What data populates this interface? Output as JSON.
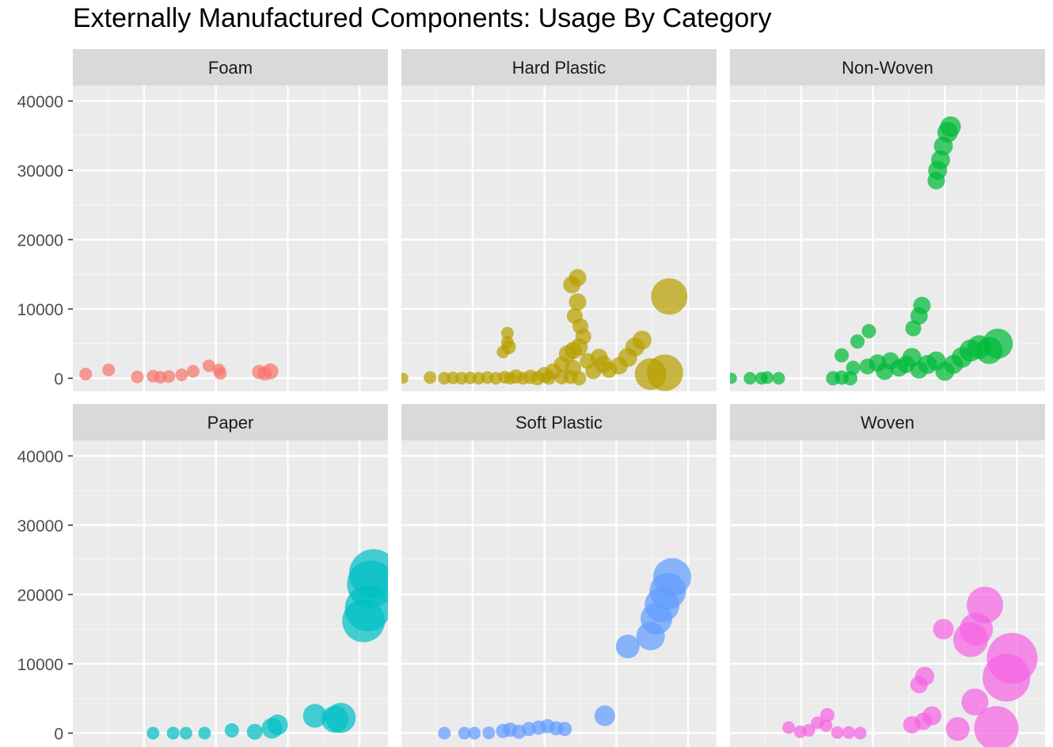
{
  "chart_data": {
    "type": "scatter",
    "title": "Externally Manufactured Components: Usage By Category",
    "xlabel": "",
    "ylabel": "",
    "ylim": [
      -1800,
      44000
    ],
    "y_ticks": [
      0,
      10000,
      20000,
      30000,
      40000
    ],
    "y_tick_labels": [
      "0",
      "10000",
      "20000",
      "30000",
      "40000"
    ],
    "xlim": [
      0,
      22
    ],
    "grid": true,
    "legend": "none",
    "facets": [
      {
        "name": "Foam",
        "color": "#F8766D",
        "points": [
          {
            "x": 0.9,
            "y": 600,
            "s": 8
          },
          {
            "x": 2.5,
            "y": 1200,
            "s": 8
          },
          {
            "x": 4.5,
            "y": 200,
            "s": 8
          },
          {
            "x": 5.6,
            "y": 300,
            "s": 8
          },
          {
            "x": 6.1,
            "y": 150,
            "s": 8
          },
          {
            "x": 6.7,
            "y": 250,
            "s": 8
          },
          {
            "x": 7.6,
            "y": 500,
            "s": 8
          },
          {
            "x": 8.4,
            "y": 1000,
            "s": 8
          },
          {
            "x": 9.5,
            "y": 1800,
            "s": 8
          },
          {
            "x": 10.2,
            "y": 1200,
            "s": 8
          },
          {
            "x": 10.3,
            "y": 700,
            "s": 8
          },
          {
            "x": 13.0,
            "y": 900,
            "s": 9
          },
          {
            "x": 13.8,
            "y": 1000,
            "s": 10
          },
          {
            "x": 13.4,
            "y": 700,
            "s": 9
          }
        ]
      },
      {
        "name": "Hard Plastic",
        "color": "#B79F00",
        "points": [
          {
            "x": 0.1,
            "y": 0,
            "s": 7
          },
          {
            "x": 2.0,
            "y": 100,
            "s": 8
          },
          {
            "x": 3.0,
            "y": 0,
            "s": 8
          },
          {
            "x": 3.6,
            "y": 50,
            "s": 8
          },
          {
            "x": 4.2,
            "y": 0,
            "s": 8
          },
          {
            "x": 4.8,
            "y": 50,
            "s": 8
          },
          {
            "x": 5.4,
            "y": 0,
            "s": 8
          },
          {
            "x": 6.0,
            "y": 100,
            "s": 8
          },
          {
            "x": 6.6,
            "y": 0,
            "s": 8
          },
          {
            "x": 7.2,
            "y": 150,
            "s": 8
          },
          {
            "x": 7.6,
            "y": 0,
            "s": 8
          },
          {
            "x": 8.0,
            "y": 250,
            "s": 9
          },
          {
            "x": 8.5,
            "y": 0,
            "s": 8
          },
          {
            "x": 9.0,
            "y": 200,
            "s": 9
          },
          {
            "x": 9.5,
            "y": 0,
            "s": 9
          },
          {
            "x": 10.3,
            "y": 100,
            "s": 9
          },
          {
            "x": 11.2,
            "y": 150,
            "s": 9
          },
          {
            "x": 11.8,
            "y": 200,
            "s": 9
          },
          {
            "x": 12.4,
            "y": 0,
            "s": 9
          },
          {
            "x": 7.1,
            "y": 3800,
            "s": 8
          },
          {
            "x": 7.5,
            "y": 4500,
            "s": 9
          },
          {
            "x": 7.4,
            "y": 5200,
            "s": 8
          },
          {
            "x": 7.4,
            "y": 6500,
            "s": 8
          },
          {
            "x": 10.0,
            "y": 500,
            "s": 10
          },
          {
            "x": 10.6,
            "y": 1000,
            "s": 10
          },
          {
            "x": 11.2,
            "y": 2000,
            "s": 10
          },
          {
            "x": 11.6,
            "y": 3500,
            "s": 11
          },
          {
            "x": 12.0,
            "y": 1500,
            "s": 10
          },
          {
            "x": 12.4,
            "y": 4500,
            "s": 11
          },
          {
            "x": 12.7,
            "y": 6000,
            "s": 10
          },
          {
            "x": 13.0,
            "y": 2500,
            "s": 10
          },
          {
            "x": 13.4,
            "y": 1000,
            "s": 10
          },
          {
            "x": 13.8,
            "y": 3000,
            "s": 11
          },
          {
            "x": 14.1,
            "y": 2000,
            "s": 11
          },
          {
            "x": 14.5,
            "y": 1200,
            "s": 10
          },
          {
            "x": 15.2,
            "y": 1800,
            "s": 11
          },
          {
            "x": 15.8,
            "y": 3000,
            "s": 12
          },
          {
            "x": 16.3,
            "y": 4500,
            "s": 12
          },
          {
            "x": 16.8,
            "y": 5500,
            "s": 12
          },
          {
            "x": 12.1,
            "y": 9000,
            "s": 10
          },
          {
            "x": 12.3,
            "y": 11000,
            "s": 11
          },
          {
            "x": 11.9,
            "y": 13500,
            "s": 11
          },
          {
            "x": 12.3,
            "y": 14500,
            "s": 11
          },
          {
            "x": 12.5,
            "y": 7500,
            "s": 10
          },
          {
            "x": 17.4,
            "y": 600,
            "s": 20
          },
          {
            "x": 18.4,
            "y": 800,
            "s": 23
          },
          {
            "x": 18.7,
            "y": 11800,
            "s": 23
          },
          {
            "x": 12.0,
            "y": 4000,
            "s": 11
          }
        ]
      },
      {
        "name": "Non-Woven",
        "color": "#00BA38",
        "points": [
          {
            "x": 0.1,
            "y": 0,
            "s": 7
          },
          {
            "x": 1.4,
            "y": 0,
            "s": 8
          },
          {
            "x": 2.2,
            "y": 0,
            "s": 8
          },
          {
            "x": 2.6,
            "y": 100,
            "s": 8
          },
          {
            "x": 3.4,
            "y": 0,
            "s": 8
          },
          {
            "x": 7.2,
            "y": 0,
            "s": 9
          },
          {
            "x": 7.8,
            "y": 100,
            "s": 9
          },
          {
            "x": 8.4,
            "y": 0,
            "s": 9
          },
          {
            "x": 8.6,
            "y": 1500,
            "s": 9
          },
          {
            "x": 7.8,
            "y": 3300,
            "s": 9
          },
          {
            "x": 8.9,
            "y": 5300,
            "s": 9
          },
          {
            "x": 9.7,
            "y": 6800,
            "s": 9
          },
          {
            "x": 9.6,
            "y": 1700,
            "s": 10
          },
          {
            "x": 10.3,
            "y": 2200,
            "s": 11
          },
          {
            "x": 10.8,
            "y": 1000,
            "s": 11
          },
          {
            "x": 11.2,
            "y": 2500,
            "s": 11
          },
          {
            "x": 11.8,
            "y": 1500,
            "s": 11
          },
          {
            "x": 12.3,
            "y": 2000,
            "s": 11
          },
          {
            "x": 12.7,
            "y": 3000,
            "s": 12
          },
          {
            "x": 13.2,
            "y": 1200,
            "s": 11
          },
          {
            "x": 13.8,
            "y": 2000,
            "s": 12
          },
          {
            "x": 14.4,
            "y": 2500,
            "s": 12
          },
          {
            "x": 15.0,
            "y": 1000,
            "s": 12
          },
          {
            "x": 15.6,
            "y": 2000,
            "s": 12
          },
          {
            "x": 16.2,
            "y": 3000,
            "s": 13
          },
          {
            "x": 16.8,
            "y": 4000,
            "s": 14
          },
          {
            "x": 17.4,
            "y": 4500,
            "s": 15
          },
          {
            "x": 18.1,
            "y": 4000,
            "s": 17
          },
          {
            "x": 18.7,
            "y": 5000,
            "s": 19
          },
          {
            "x": 12.8,
            "y": 7200,
            "s": 10
          },
          {
            "x": 13.2,
            "y": 9000,
            "s": 11
          },
          {
            "x": 13.4,
            "y": 10500,
            "s": 11
          },
          {
            "x": 14.4,
            "y": 28500,
            "s": 11
          },
          {
            "x": 14.5,
            "y": 30000,
            "s": 12
          },
          {
            "x": 14.7,
            "y": 31500,
            "s": 12
          },
          {
            "x": 14.9,
            "y": 33500,
            "s": 12
          },
          {
            "x": 15.2,
            "y": 35500,
            "s": 13
          },
          {
            "x": 15.4,
            "y": 36300,
            "s": 13
          }
        ]
      },
      {
        "name": "Paper",
        "color": "#00BFC4",
        "points": [
          {
            "x": 5.6,
            "y": 0,
            "s": 8
          },
          {
            "x": 7.0,
            "y": 0,
            "s": 8
          },
          {
            "x": 7.9,
            "y": 0,
            "s": 8
          },
          {
            "x": 9.2,
            "y": 0,
            "s": 8
          },
          {
            "x": 11.1,
            "y": 400,
            "s": 9
          },
          {
            "x": 12.7,
            "y": 200,
            "s": 10
          },
          {
            "x": 13.9,
            "y": 700,
            "s": 13
          },
          {
            "x": 14.3,
            "y": 1200,
            "s": 13
          },
          {
            "x": 16.9,
            "y": 2500,
            "s": 15
          },
          {
            "x": 18.3,
            "y": 2000,
            "s": 17
          },
          {
            "x": 18.7,
            "y": 2200,
            "s": 19
          },
          {
            "x": 20.3,
            "y": 16200,
            "s": 27
          },
          {
            "x": 20.6,
            "y": 18000,
            "s": 29
          },
          {
            "x": 20.8,
            "y": 21500,
            "s": 30
          },
          {
            "x": 21.0,
            "y": 23000,
            "s": 31
          }
        ]
      },
      {
        "name": "Soft Plastic",
        "color": "#619CFF",
        "points": [
          {
            "x": 3.0,
            "y": 0,
            "s": 8
          },
          {
            "x": 4.4,
            "y": 0,
            "s": 8
          },
          {
            "x": 5.1,
            "y": 0,
            "s": 8
          },
          {
            "x": 6.1,
            "y": 50,
            "s": 8
          },
          {
            "x": 7.1,
            "y": 300,
            "s": 9
          },
          {
            "x": 7.6,
            "y": 500,
            "s": 9
          },
          {
            "x": 8.2,
            "y": 200,
            "s": 9
          },
          {
            "x": 8.9,
            "y": 600,
            "s": 9
          },
          {
            "x": 9.6,
            "y": 800,
            "s": 9
          },
          {
            "x": 10.2,
            "y": 1000,
            "s": 9
          },
          {
            "x": 10.8,
            "y": 700,
            "s": 9
          },
          {
            "x": 11.4,
            "y": 600,
            "s": 9
          },
          {
            "x": 14.2,
            "y": 2500,
            "s": 13
          },
          {
            "x": 15.8,
            "y": 12500,
            "s": 15
          },
          {
            "x": 17.4,
            "y": 14000,
            "s": 18
          },
          {
            "x": 17.8,
            "y": 16500,
            "s": 20
          },
          {
            "x": 18.2,
            "y": 18500,
            "s": 22
          },
          {
            "x": 18.6,
            "y": 20500,
            "s": 23
          },
          {
            "x": 18.9,
            "y": 22500,
            "s": 24
          }
        ]
      },
      {
        "name": "Woven",
        "color": "#F564E3",
        "points": [
          {
            "x": 4.1,
            "y": 800,
            "s": 8
          },
          {
            "x": 4.9,
            "y": 200,
            "s": 8
          },
          {
            "x": 5.5,
            "y": 400,
            "s": 8
          },
          {
            "x": 6.1,
            "y": 1500,
            "s": 8
          },
          {
            "x": 6.8,
            "y": 2600,
            "s": 9
          },
          {
            "x": 6.7,
            "y": 1100,
            "s": 8
          },
          {
            "x": 7.5,
            "y": 100,
            "s": 8
          },
          {
            "x": 8.3,
            "y": 100,
            "s": 8
          },
          {
            "x": 9.1,
            "y": 0,
            "s": 8
          },
          {
            "x": 12.7,
            "y": 1200,
            "s": 11
          },
          {
            "x": 13.5,
            "y": 1700,
            "s": 11
          },
          {
            "x": 14.1,
            "y": 2500,
            "s": 12
          },
          {
            "x": 13.2,
            "y": 7000,
            "s": 11
          },
          {
            "x": 13.6,
            "y": 8200,
            "s": 12
          },
          {
            "x": 14.9,
            "y": 15000,
            "s": 13
          },
          {
            "x": 15.9,
            "y": 600,
            "s": 15
          },
          {
            "x": 17.1,
            "y": 4500,
            "s": 17
          },
          {
            "x": 16.8,
            "y": 13500,
            "s": 22
          },
          {
            "x": 17.2,
            "y": 15000,
            "s": 21
          },
          {
            "x": 17.8,
            "y": 18500,
            "s": 23
          },
          {
            "x": 18.6,
            "y": 700,
            "s": 28
          },
          {
            "x": 19.3,
            "y": 8000,
            "s": 30
          },
          {
            "x": 19.7,
            "y": 10800,
            "s": 32
          }
        ]
      }
    ]
  }
}
